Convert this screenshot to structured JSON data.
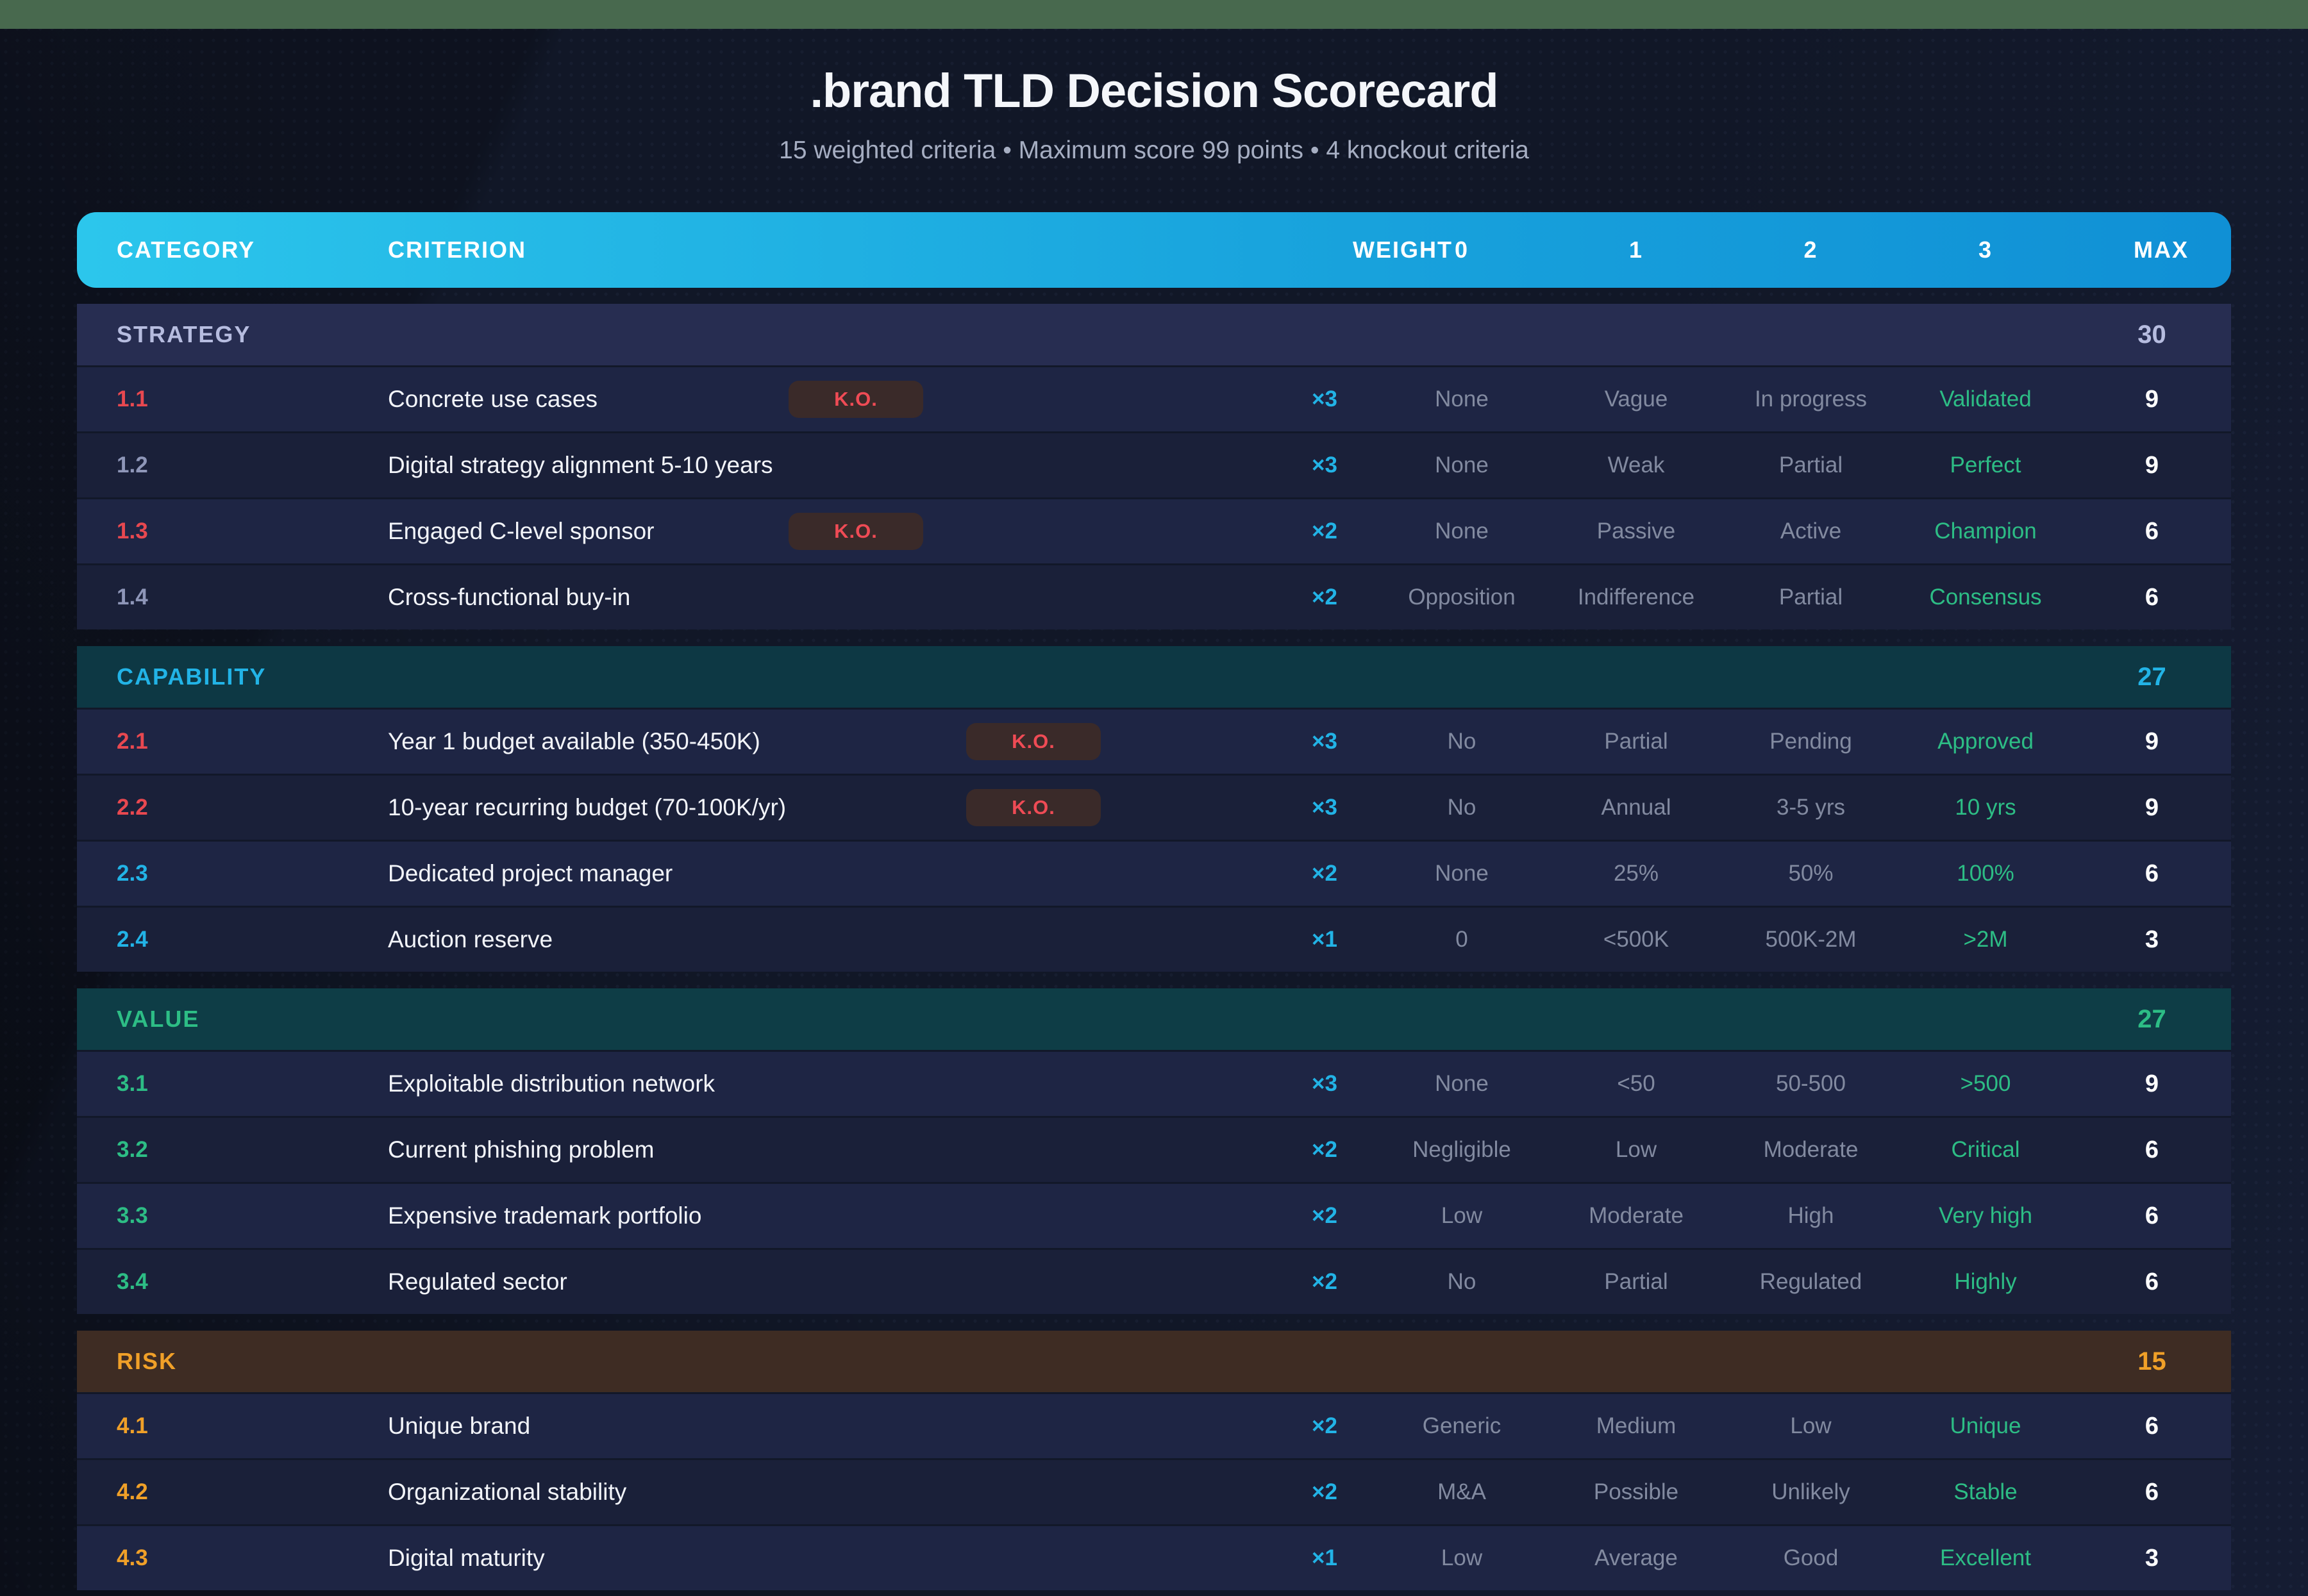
{
  "page": {
    "title": ".brand TLD Decision Scorecard",
    "subtitle": "15 weighted criteria • Maximum score 99 points • 4 knockout criteria"
  },
  "table": {
    "columns": [
      "CATEGORY",
      "CRITERION",
      "WEIGHT",
      "0",
      "1",
      "2",
      "3",
      "MAX"
    ],
    "ko_label": "K.O.",
    "sections": [
      {
        "name": "STRATEGY",
        "max": "30",
        "theme": "strategy",
        "rows": [
          {
            "num": "1.1",
            "criterion": "Concrete use cases",
            "ko": true,
            "weight": "×3",
            "scores": [
              "None",
              "Vague",
              "In progress",
              "Validated"
            ],
            "max": "9"
          },
          {
            "num": "1.2",
            "criterion": "Digital strategy alignment 5-10 years",
            "ko": false,
            "weight": "×3",
            "scores": [
              "None",
              "Weak",
              "Partial",
              "Perfect"
            ],
            "max": "9"
          },
          {
            "num": "1.3",
            "criterion": "Engaged C-level sponsor",
            "ko": true,
            "weight": "×2",
            "scores": [
              "None",
              "Passive",
              "Active",
              "Champion"
            ],
            "max": "6"
          },
          {
            "num": "1.4",
            "criterion": "Cross-functional buy-in",
            "ko": false,
            "weight": "×2",
            "scores": [
              "Opposition",
              "Indifference",
              "Partial",
              "Consensus"
            ],
            "max": "6"
          }
        ]
      },
      {
        "name": "CAPABILITY",
        "max": "27",
        "theme": "capability",
        "rows": [
          {
            "num": "2.1",
            "criterion": "Year 1 budget available (350-450K)",
            "ko": true,
            "weight": "×3",
            "scores": [
              "No",
              "Partial",
              "Pending",
              "Approved"
            ],
            "max": "9"
          },
          {
            "num": "2.2",
            "criterion": "10-year recurring budget (70-100K/yr)",
            "ko": true,
            "weight": "×3",
            "scores": [
              "No",
              "Annual",
              "3-5 yrs",
              "10 yrs"
            ],
            "max": "9"
          },
          {
            "num": "2.3",
            "criterion": "Dedicated project manager",
            "ko": false,
            "weight": "×2",
            "scores": [
              "None",
              "25%",
              "50%",
              "100%"
            ],
            "max": "6"
          },
          {
            "num": "2.4",
            "criterion": "Auction reserve",
            "ko": false,
            "weight": "×1",
            "scores": [
              "0",
              "<500K",
              "500K-2M",
              ">2M"
            ],
            "max": "3"
          }
        ]
      },
      {
        "name": "VALUE",
        "max": "27",
        "theme": "value",
        "rows": [
          {
            "num": "3.1",
            "criterion": "Exploitable distribution network",
            "ko": false,
            "weight": "×3",
            "scores": [
              "None",
              "<50",
              "50-500",
              ">500"
            ],
            "max": "9"
          },
          {
            "num": "3.2",
            "criterion": "Current phishing problem",
            "ko": false,
            "weight": "×2",
            "scores": [
              "Negligible",
              "Low",
              "Moderate",
              "Critical"
            ],
            "max": "6"
          },
          {
            "num": "3.3",
            "criterion": "Expensive trademark portfolio",
            "ko": false,
            "weight": "×2",
            "scores": [
              "Low",
              "Moderate",
              "High",
              "Very high"
            ],
            "max": "6"
          },
          {
            "num": "3.4",
            "criterion": "Regulated sector",
            "ko": false,
            "weight": "×2",
            "scores": [
              "No",
              "Partial",
              "Regulated",
              "Highly"
            ],
            "max": "6"
          }
        ]
      },
      {
        "name": "RISK",
        "max": "15",
        "theme": "risk",
        "rows": [
          {
            "num": "4.1",
            "criterion": "Unique brand",
            "ko": false,
            "weight": "×2",
            "scores": [
              "Generic",
              "Medium",
              "Low",
              "Unique"
            ],
            "max": "6"
          },
          {
            "num": "4.2",
            "criterion": "Organizational stability",
            "ko": false,
            "weight": "×2",
            "scores": [
              "M&A",
              "Possible",
              "Unlikely",
              "Stable"
            ],
            "max": "6"
          },
          {
            "num": "4.3",
            "criterion": "Digital maturity",
            "ko": false,
            "weight": "×1",
            "scores": [
              "Low",
              "Average",
              "Good",
              "Excellent"
            ],
            "max": "3"
          }
        ]
      }
    ]
  },
  "colors": {
    "top_bar_green": "#48694e",
    "header_gradient_start": "#2cc6ec",
    "header_gradient_end": "#1090d5",
    "accent_cyan": "#22b3e6",
    "accent_green": "#2dbd85",
    "accent_orange": "#f0a028",
    "accent_red": "#e84850",
    "ko_badge_bg": "#3a2a29",
    "row_odd_bg": "#1e2544",
    "row_even_bg": "#1a2039"
  }
}
